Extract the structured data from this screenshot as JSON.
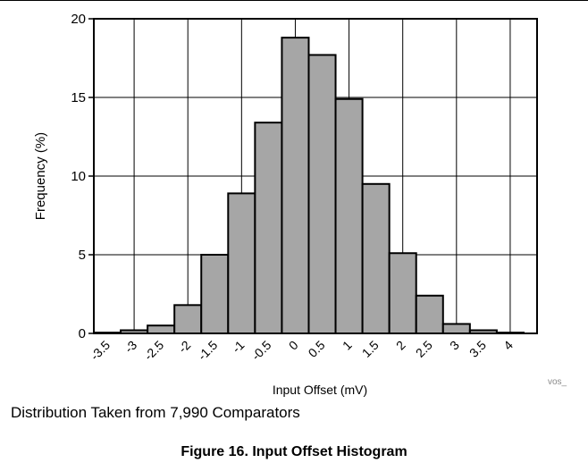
{
  "chart_data": {
    "type": "bar",
    "bin_edges": [
      -3.75,
      -3.25,
      -2.75,
      -2.25,
      -1.75,
      -1.25,
      -0.75,
      -0.25,
      0.25,
      0.75,
      1.25,
      1.75,
      2.25,
      2.75,
      3.25,
      3.75,
      4.25
    ],
    "categories": [
      "-3.5",
      "-3",
      "-2.5",
      "-2",
      "-1.5",
      "-1",
      "-0.5",
      "0",
      "0.5",
      "1",
      "1.5",
      "2",
      "2.5",
      "3",
      "3.5",
      "4"
    ],
    "values": [
      0.05,
      0.2,
      0.5,
      1.8,
      5.0,
      8.9,
      13.4,
      18.8,
      17.7,
      14.9,
      9.5,
      5.1,
      2.4,
      0.6,
      0.2,
      0.05
    ],
    "xlim": [
      -3.75,
      4.5
    ],
    "ylim": [
      0,
      20
    ],
    "yticks": [
      "0",
      "5",
      "10",
      "15",
      "20"
    ],
    "xlabel": "Input Offset (mV)",
    "ylabel": "Frequency (%)",
    "grid": true,
    "bar_color": "#a6a6a6",
    "ref_code": "vos_"
  },
  "note": "Distribution Taken from 7,990 Comparators",
  "caption": "Figure 16. Input Offset Histogram"
}
